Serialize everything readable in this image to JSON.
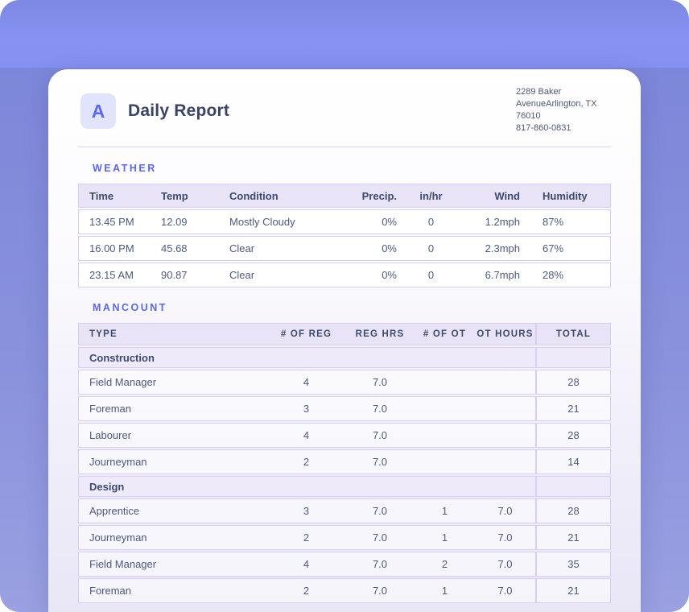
{
  "header": {
    "logo_letter": "A",
    "title": "Daily Report",
    "address_lines": [
      "2289 Baker",
      "AvenueArlington, TX",
      "76010",
      "817-860-0831"
    ]
  },
  "weather": {
    "section_label": "WEATHER",
    "columns": [
      "Time",
      "Temp",
      "Condition",
      "Precip.",
      "in/hr",
      "Wind",
      "Humidity"
    ],
    "rows": [
      [
        "13.45 PM",
        "12.09",
        "Mostly Cloudy",
        "0%",
        "0",
        "1.2mph",
        "87%"
      ],
      [
        "16.00 PM",
        "45.68",
        "Clear",
        "0%",
        "0",
        "2.3mph",
        "67%"
      ],
      [
        "23.15 AM",
        "90.87",
        "Clear",
        "0%",
        "0",
        "6.7mph",
        "28%"
      ]
    ]
  },
  "mancount": {
    "section_label": "MANCOUNT",
    "columns": [
      "TYPE",
      "# OF REG",
      "REG HRS",
      "# OF OT",
      "OT HOURS",
      "TOTAL"
    ],
    "groups": [
      {
        "name": "Construction",
        "rows": [
          [
            "Field Manager",
            "4",
            "7.0",
            "",
            "",
            "28"
          ],
          [
            "Foreman",
            "3",
            "7.0",
            "",
            "",
            "21"
          ],
          [
            "Labourer",
            "4",
            "7.0",
            "",
            "",
            "28"
          ],
          [
            "Journeyman",
            "2",
            "7.0",
            "",
            "",
            "14"
          ]
        ]
      },
      {
        "name": "Design",
        "rows": [
          [
            "Apprentice",
            "3",
            "7.0",
            "1",
            "7.0",
            "28"
          ],
          [
            "Journeyman",
            "2",
            "7.0",
            "1",
            "7.0",
            "21"
          ],
          [
            "Field Manager",
            "4",
            "7.0",
            "2",
            "7.0",
            "35"
          ],
          [
            "Foreman",
            "2",
            "7.0",
            "1",
            "7.0",
            "21"
          ]
        ]
      }
    ]
  },
  "colors": {
    "accent": "#5a67ef",
    "band_top": "#8591f1",
    "band_lower": "#8a92dd",
    "table_border": "#d9cef1",
    "table_header_bg": "#e8e3f7",
    "group_row_bg": "#efeafa",
    "title_text": "#3b4366",
    "body_text": "#50597e"
  }
}
